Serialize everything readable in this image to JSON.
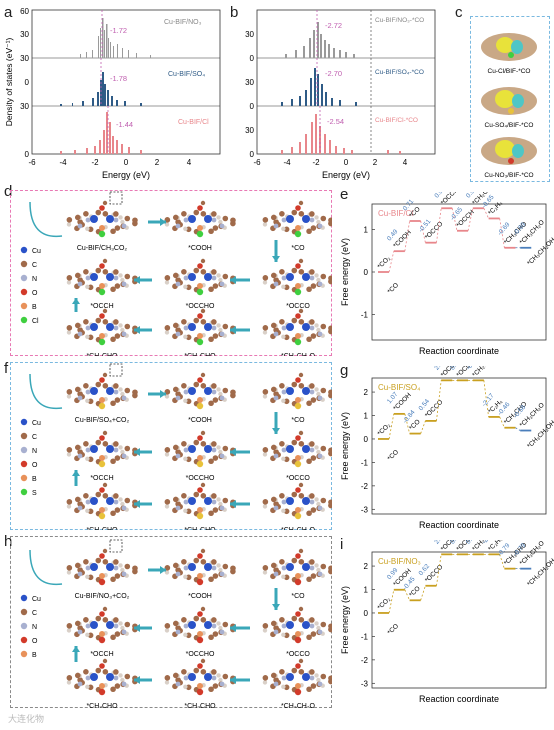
{
  "colors": {
    "no3": "#9a9a9a",
    "so4": "#2f5b86",
    "cl": "#e8868b",
    "pink_box": "#e879b4",
    "blue_box": "#7ab9e0",
    "gray_box": "#8a8a8a",
    "arrow": "#3aa7b8",
    "peak_label": "#c060b0",
    "dash_blue": "#4a7ebb"
  },
  "panel_letters": {
    "a": "a",
    "b": "b",
    "c": "c",
    "d": "d",
    "e": "e",
    "f": "f",
    "g": "g",
    "h": "h",
    "i": "i"
  },
  "panel_a": {
    "ylabel": "Density of states (eV⁻¹)",
    "xlabel": "Energy (eV)",
    "xticks": [
      "-6",
      "-4",
      "-2",
      "0",
      "2",
      "4"
    ],
    "yticks": [
      "60",
      "30",
      "0"
    ],
    "rows": [
      {
        "name": "Cu-BIF/NO₃",
        "peak": "-1.72",
        "ytop": "60"
      },
      {
        "name": "Cu-BIF/SO₄",
        "peak": "-1.78",
        "ytop": "30"
      },
      {
        "name": "Cu-BIF/Cl",
        "peak": "-1.44",
        "ytop": "30"
      }
    ]
  },
  "panel_b": {
    "xlabel": "Energy (eV)",
    "xticks": [
      "-6",
      "-4",
      "-2",
      "0",
      "2",
      "4"
    ],
    "rows": [
      {
        "name": "Cu-BIF/NO₃-*CO",
        "peak": "-2.72",
        "ytop": "30"
      },
      {
        "name": "Cu-BIF/SO₄-*CO",
        "peak": "-2.70",
        "ytop": "30"
      },
      {
        "name": "Cu-BIF/Cl-*CO",
        "peak": "-2.54",
        "ytop": "30"
      }
    ]
  },
  "panel_c": {
    "labels": [
      "Cu-Cl/BIF-*CO",
      "Cu-SO₄/BIF-*CO",
      "Cu-NO₃/BIF-*CO"
    ]
  },
  "legend_items": [
    "Cu",
    "C",
    "N",
    "O",
    "B",
    "Cl"
  ],
  "legend_items_f": [
    "Cu",
    "C",
    "N",
    "O",
    "B",
    "S"
  ],
  "legend_items_h": [
    "Cu",
    "C",
    "N",
    "O",
    "B"
  ],
  "legend_colors": [
    "#2a52c8",
    "#a06a4a",
    "#a8b0d0",
    "#d23a2a",
    "#e8915a",
    "#3fcf3f"
  ],
  "panel_d": {
    "labels": [
      "Cu-BIF/CH₃CO₂",
      "*COOH",
      "*CO",
      "*OCCH",
      "*OCCHO",
      "*OCCO",
      "*CH₂CHO",
      "*CH₃CHO",
      "*CH₃CH₂O"
    ]
  },
  "panel_f": {
    "labels": [
      "Cu-BIF/SO₄+CO₂",
      "*COOH",
      "*CO",
      "*OCCH",
      "*OCCHO",
      "*OCCO",
      "*CH₂CHO",
      "*CH₃CHO",
      "*CH₃CH₂O"
    ]
  },
  "panel_h": {
    "labels": [
      "Cu-BIF/NO₃+CO₂",
      "*COOH",
      "*CO",
      "*OCCH",
      "*OCCHO",
      "*OCCO",
      "*CH₂CHO",
      "*CH₃CHO",
      "*CH₃CH₂O"
    ]
  },
  "energy_axis": {
    "ylabel": "Free energy (eV)",
    "xlabel": "Reaction coordinate",
    "yticks": [
      "2",
      "1",
      "0",
      "-1",
      "-2",
      "-3"
    ]
  },
  "panel_e": {
    "title": "Cu-BIF/Cl",
    "species": [
      "*CO₂",
      "*COOH",
      "*CO",
      "*OCCO",
      "*OCCHO",
      "*OCCH",
      "*CH₂CHO",
      "*C₂H₄",
      "*CH₃CHO",
      "*CH₃CH₂O",
      "*CH₃CH₂OH"
    ],
    "values": [
      "0.49",
      "0.71",
      "-0.51",
      "0.93",
      "-0.65",
      "0.94",
      "-0.65",
      "-0.69",
      "-0.69"
    ]
  },
  "panel_g": {
    "title": "Cu-BIF/SO₄",
    "species": [
      "*CO₂",
      "*COOH",
      "*CO",
      "*OCCO",
      "*OCCHO",
      "*OCCH",
      "*CH₂CHO",
      "*C₂H₄",
      "*CH₃CHO",
      "*CH₃CH₂O",
      "*CH₃CH₂OH"
    ],
    "values": [
      "1.07",
      "-0.84",
      "0.54",
      "2.16",
      "0.64",
      "-0.46",
      "-2.17",
      "-0.46",
      "-0.58"
    ]
  },
  "panel_i": {
    "title": "Cu-BIF/NO₃",
    "species": [
      "*CO₂",
      "*COOH",
      "*CO",
      "*OCCO",
      "*OCCHO",
      "*OCCH",
      "*CH₂CHO",
      "*C₂H₄",
      "*CH₃CHO",
      "*CH₃CH₂O",
      "*CH₃CH₂OH"
    ],
    "values": [
      "0.99",
      "-0.45",
      "0.62",
      "2.45",
      "0.75",
      "0.79",
      "-2.47",
      "-0.79",
      "-0.79"
    ]
  },
  "watermark": "大连化物"
}
